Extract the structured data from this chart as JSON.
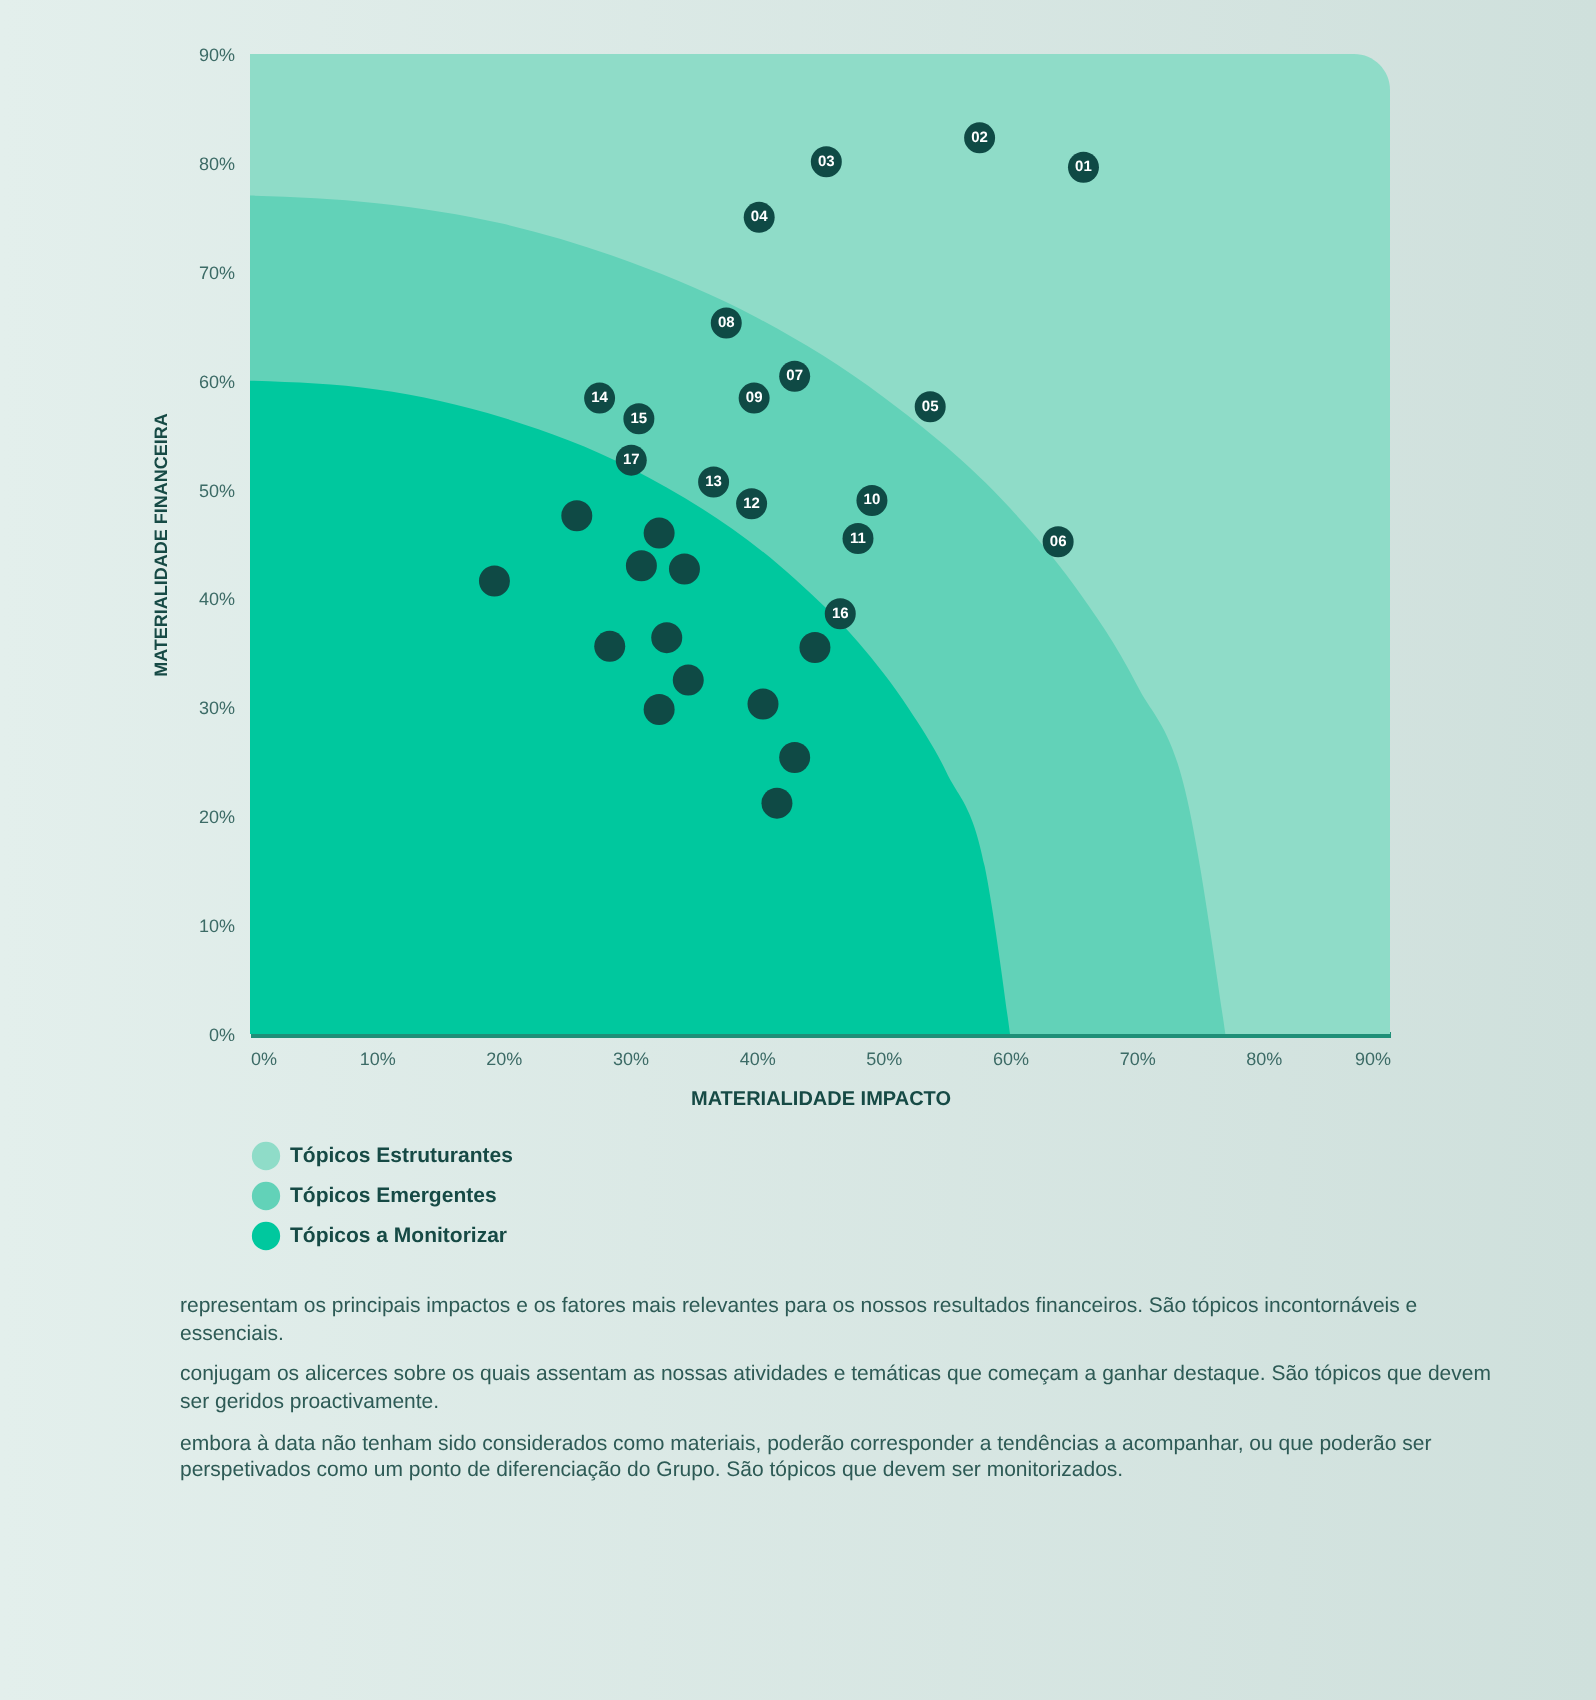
{
  "chart_data": {
    "type": "area",
    "xlabel": "MATERIALIDADE IMPACTO",
    "ylabel": "MATERIALIDADE FINANCEIRA",
    "xlim": [
      0,
      90
    ],
    "ylim": [
      0,
      90
    ],
    "xticks": [
      {
        "value": 0,
        "label": "0%"
      },
      {
        "value": 10,
        "label": "10%"
      },
      {
        "value": 20,
        "label": "20%"
      },
      {
        "value": 30,
        "label": "30%"
      },
      {
        "value": 40,
        "label": "40%"
      },
      {
        "value": 50,
        "label": "50%"
      },
      {
        "value": 60,
        "label": "60%"
      },
      {
        "value": 70,
        "label": "70%"
      },
      {
        "value": 80,
        "label": "80%"
      },
      {
        "value": 90,
        "label": "90%"
      }
    ],
    "yticks": [
      {
        "value": 0,
        "label": "0%"
      },
      {
        "value": 10,
        "label": "10%"
      },
      {
        "value": 20,
        "label": "20%"
      },
      {
        "value": 30,
        "label": "30%"
      },
      {
        "value": 40,
        "label": "40%"
      },
      {
        "value": 50,
        "label": "50%"
      },
      {
        "value": 60,
        "label": "60%"
      },
      {
        "value": 70,
        "label": "70%"
      },
      {
        "value": 80,
        "label": "80%"
      },
      {
        "value": 90,
        "label": "90%"
      }
    ],
    "grid": false,
    "legend": "bottom",
    "bands": [
      {
        "axis": "x",
        "from": 0,
        "to": 90,
        "label": "Tópicos Estruturantes",
        "color": "#8fdcc8"
      }
    ],
    "series": [
      {
        "name": "Tópicos Emergentes",
        "color": "#62d2b8",
        "x": [
          0,
          10,
          20,
          30,
          40,
          50,
          60,
          65,
          70,
          74,
          77
        ],
        "values": [
          77,
          76.3,
          74.4,
          70.9,
          65.8,
          58.5,
          48.3,
          41.3,
          32.1,
          21.5,
          0
        ]
      },
      {
        "name": "Tópicos a Monitorizar",
        "color": "#00c89e",
        "x": [
          0,
          10,
          20,
          30,
          43,
          48,
          52,
          55,
          58,
          60
        ],
        "values": [
          60,
          59.2,
          56.6,
          52,
          41.8,
          36,
          29.9,
          24,
          15.4,
          0
        ]
      },
      {
        "type": "scatter",
        "color": "#0f4a45",
        "x": [
          65.8,
          57.6,
          45.5,
          40.2,
          53.7,
          63.8,
          43,
          37.6,
          39.8,
          49.1,
          48,
          39.6,
          36.6,
          27.6,
          30.7,
          46.6,
          30.1,
          25.8,
          32.3,
          30.9,
          34.3,
          19.3,
          28.4,
          32.9,
          34.6,
          32.3,
          40.5,
          44.6,
          43,
          41.6
        ],
        "values": [
          79.6,
          82.3,
          80.1,
          75,
          57.6,
          45.2,
          60.4,
          65.3,
          58.4,
          49,
          45.5,
          48.7,
          50.7,
          58.4,
          56.5,
          38.6,
          52.7,
          47.6,
          46,
          43,
          42.7,
          41.6,
          35.6,
          36.4,
          32.5,
          29.8,
          30.3,
          35.5,
          25.4,
          21.2
        ]
      }
    ],
    "annotations": [
      {
        "text": "01",
        "x": 65.8,
        "y": 79.6
      },
      {
        "text": "02",
        "x": 57.6,
        "y": 82.3
      },
      {
        "text": "03",
        "x": 45.5,
        "y": 80.1
      },
      {
        "text": "04",
        "x": 40.2,
        "y": 75
      },
      {
        "text": "05",
        "x": 53.7,
        "y": 57.6
      },
      {
        "text": "06",
        "x": 63.8,
        "y": 45.2
      },
      {
        "text": "07",
        "x": 43,
        "y": 60.4
      },
      {
        "text": "08",
        "x": 37.6,
        "y": 65.3
      },
      {
        "text": "09",
        "x": 39.8,
        "y": 58.4
      },
      {
        "text": "10",
        "x": 49.1,
        "y": 49
      },
      {
        "text": "11",
        "x": 48,
        "y": 45.5
      },
      {
        "text": "12",
        "x": 39.6,
        "y": 48.7
      },
      {
        "text": "13",
        "x": 36.6,
        "y": 50.7
      },
      {
        "text": "14",
        "x": 27.6,
        "y": 58.4
      },
      {
        "text": "15",
        "x": 30.7,
        "y": 56.5
      },
      {
        "text": "16",
        "x": 46.6,
        "y": 38.6
      },
      {
        "text": "17",
        "x": 30.1,
        "y": 52.7
      },
      "representam os principais impactos e os fatores mais relevantes para os nossos resultados financeiros. São tópicos incontornáveis e essenciais.",
      "conjugam os alicerces sobre os quais assentam as nossas atividades e temáticas que começam a ganhar destaque. São tópicos que devem ser geridos proactivamente.",
      "embora à data não tenham sido considerados como materiais, poderão corresponder a tendências a acompanhar, ou que poderão ser perspetivados como um ponto de diferenciação do Grupo. São tópicos que devem ser monitorizados."
    ]
  }
}
